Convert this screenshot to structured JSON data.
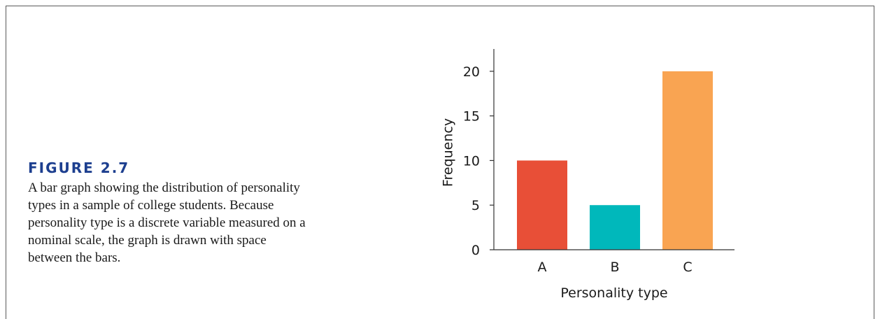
{
  "caption": {
    "label": "FIGURE 2.7",
    "text": "A bar graph showing the distribution of personality types in a sample of college students. Because personality type is a discrete variable measured on a nominal scale, the graph is drawn with space between the bars."
  },
  "chart_data": {
    "type": "bar",
    "categories": [
      "A",
      "B",
      "C"
    ],
    "values": [
      10,
      5,
      20
    ],
    "colors": [
      "#e84f37",
      "#00b8bb",
      "#f9a452"
    ],
    "xlabel": "Personality type",
    "ylabel": "Frequency",
    "ylim": [
      0,
      22.5
    ],
    "yticks": [
      0,
      5,
      10,
      15,
      20
    ],
    "grid": false
  }
}
